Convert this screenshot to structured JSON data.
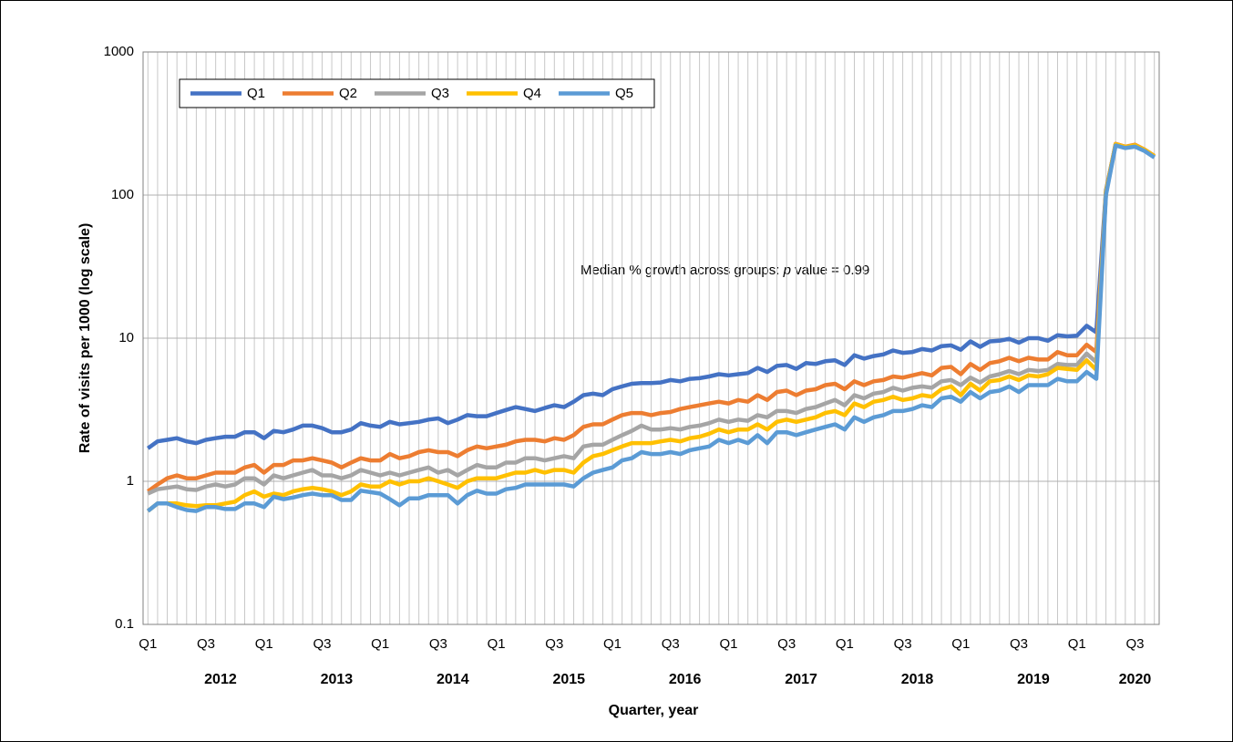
{
  "chart_data": {
    "type": "line",
    "y_label": "Rate of visits per 1000 (log scale)",
    "x_label": "Quarter, year",
    "annotation": [
      "Median % growth across groups: ",
      "p",
      " value = 0.99"
    ],
    "log_scale": true,
    "grid": true,
    "legend": "upper left",
    "ylim": [
      0.1,
      1000
    ],
    "yticks": [
      0.1,
      1,
      10,
      100,
      1000
    ],
    "x_groups": [
      "2012",
      "2013",
      "2014",
      "2015",
      "2016",
      "2017",
      "2018",
      "2019",
      "2020"
    ],
    "categories": [
      "Q1",
      null,
      null,
      null,
      null,
      null,
      "Q3",
      null,
      null,
      null,
      null,
      null,
      "Q1",
      null,
      null,
      null,
      null,
      null,
      "Q3",
      null,
      null,
      null,
      null,
      null,
      "Q1",
      null,
      null,
      null,
      null,
      null,
      "Q3",
      null,
      null,
      null,
      null,
      null,
      "Q1",
      null,
      null,
      null,
      null,
      null,
      "Q3",
      null,
      null,
      null,
      null,
      null,
      "Q1",
      null,
      null,
      null,
      null,
      null,
      "Q3",
      null,
      null,
      null,
      null,
      null,
      "Q1",
      null,
      null,
      null,
      null,
      null,
      "Q3",
      null,
      null,
      null,
      null,
      null,
      "Q1",
      null,
      null,
      null,
      null,
      null,
      "Q3",
      null,
      null,
      null,
      null,
      null,
      "Q1",
      null,
      null,
      null,
      null,
      null,
      "Q3",
      null,
      null,
      null,
      null,
      null,
      "Q1",
      null,
      null,
      null,
      null,
      null,
      "Q3",
      null,
      null
    ],
    "series": [
      {
        "name": "Q1",
        "color": "#4472c4",
        "values": [
          1.7,
          1.9,
          1.95,
          2.0,
          1.9,
          1.85,
          1.95,
          2.0,
          2.05,
          2.05,
          2.2,
          2.2,
          2.0,
          2.25,
          2.2,
          2.3,
          2.45,
          2.45,
          2.35,
          2.2,
          2.2,
          2.3,
          2.55,
          2.45,
          2.4,
          2.6,
          2.5,
          2.55,
          2.6,
          2.7,
          2.75,
          2.55,
          2.7,
          2.9,
          2.85,
          2.85,
          3.0,
          3.15,
          3.3,
          3.2,
          3.1,
          3.25,
          3.4,
          3.3,
          3.6,
          4.0,
          4.1,
          4.0,
          4.4,
          4.6,
          4.8,
          4.85,
          4.85,
          4.9,
          5.1,
          5.0,
          5.2,
          5.25,
          5.4,
          5.6,
          5.5,
          5.6,
          5.7,
          6.2,
          5.8,
          6.4,
          6.5,
          6.1,
          6.7,
          6.6,
          6.9,
          7.0,
          6.5,
          7.6,
          7.2,
          7.5,
          7.7,
          8.2,
          7.9,
          8.0,
          8.4,
          8.2,
          8.8,
          8.9,
          8.3,
          9.5,
          8.7,
          9.5,
          9.6,
          9.9,
          9.3,
          10.0,
          10.0,
          9.6,
          10.5,
          10.3,
          10.4,
          12.2,
          11.0,
          108,
          225,
          215,
          220,
          205,
          185
        ]
      },
      {
        "name": "Q2",
        "color": "#ed7d31",
        "values": [
          0.85,
          0.95,
          1.05,
          1.1,
          1.05,
          1.05,
          1.1,
          1.15,
          1.15,
          1.15,
          1.25,
          1.3,
          1.15,
          1.3,
          1.3,
          1.4,
          1.4,
          1.45,
          1.4,
          1.35,
          1.25,
          1.35,
          1.45,
          1.4,
          1.4,
          1.55,
          1.45,
          1.5,
          1.6,
          1.65,
          1.6,
          1.6,
          1.5,
          1.65,
          1.75,
          1.7,
          1.75,
          1.8,
          1.9,
          1.95,
          1.95,
          1.9,
          2.0,
          1.95,
          2.1,
          2.4,
          2.5,
          2.5,
          2.7,
          2.9,
          3.0,
          3.0,
          2.9,
          3.0,
          3.05,
          3.2,
          3.3,
          3.4,
          3.5,
          3.6,
          3.5,
          3.7,
          3.6,
          4.0,
          3.7,
          4.2,
          4.3,
          4.0,
          4.3,
          4.4,
          4.7,
          4.8,
          4.4,
          5.0,
          4.7,
          5.0,
          5.1,
          5.4,
          5.3,
          5.5,
          5.7,
          5.5,
          6.2,
          6.3,
          5.6,
          6.6,
          6.0,
          6.7,
          6.9,
          7.3,
          6.9,
          7.3,
          7.1,
          7.1,
          8.0,
          7.6,
          7.6,
          9.0,
          8.0,
          105,
          228,
          218,
          225,
          208,
          188
        ]
      },
      {
        "name": "Q3",
        "color": "#a5a5a5",
        "values": [
          0.82,
          0.88,
          0.9,
          0.92,
          0.88,
          0.87,
          0.92,
          0.95,
          0.92,
          0.95,
          1.05,
          1.05,
          0.95,
          1.1,
          1.05,
          1.1,
          1.15,
          1.2,
          1.1,
          1.1,
          1.05,
          1.1,
          1.2,
          1.15,
          1.1,
          1.15,
          1.1,
          1.15,
          1.2,
          1.25,
          1.15,
          1.2,
          1.1,
          1.2,
          1.3,
          1.25,
          1.25,
          1.35,
          1.35,
          1.45,
          1.45,
          1.4,
          1.45,
          1.5,
          1.45,
          1.75,
          1.8,
          1.8,
          1.95,
          2.1,
          2.25,
          2.45,
          2.3,
          2.3,
          2.35,
          2.3,
          2.4,
          2.45,
          2.55,
          2.7,
          2.6,
          2.7,
          2.65,
          2.9,
          2.8,
          3.1,
          3.1,
          3.0,
          3.2,
          3.3,
          3.5,
          3.7,
          3.4,
          4.0,
          3.8,
          4.1,
          4.2,
          4.5,
          4.3,
          4.5,
          4.6,
          4.5,
          5.0,
          5.1,
          4.7,
          5.3,
          4.9,
          5.4,
          5.6,
          5.9,
          5.6,
          6.0,
          5.9,
          6.0,
          6.6,
          6.5,
          6.5,
          7.8,
          6.8,
          103,
          226,
          216,
          222,
          206,
          186
        ]
      },
      {
        "name": "Q4",
        "color": "#ffc000",
        "values": [
          0.62,
          0.7,
          0.7,
          0.7,
          0.68,
          0.67,
          0.68,
          0.68,
          0.7,
          0.72,
          0.8,
          0.85,
          0.78,
          0.82,
          0.8,
          0.85,
          0.88,
          0.9,
          0.88,
          0.85,
          0.8,
          0.85,
          0.95,
          0.92,
          0.92,
          1.0,
          0.95,
          1.0,
          1.0,
          1.05,
          1.0,
          0.95,
          0.9,
          1.0,
          1.05,
          1.05,
          1.05,
          1.1,
          1.15,
          1.15,
          1.2,
          1.15,
          1.2,
          1.2,
          1.15,
          1.35,
          1.5,
          1.55,
          1.65,
          1.75,
          1.85,
          1.85,
          1.85,
          1.9,
          1.95,
          1.9,
          2.0,
          2.05,
          2.15,
          2.3,
          2.2,
          2.3,
          2.3,
          2.5,
          2.3,
          2.6,
          2.7,
          2.6,
          2.7,
          2.8,
          3.0,
          3.1,
          2.9,
          3.5,
          3.3,
          3.6,
          3.7,
          3.9,
          3.7,
          3.8,
          4.0,
          3.9,
          4.4,
          4.6,
          4.0,
          4.8,
          4.3,
          5.0,
          5.1,
          5.4,
          5.1,
          5.5,
          5.4,
          5.6,
          6.2,
          6.1,
          6.0,
          7.0,
          6.0,
          104,
          227,
          217,
          223,
          207,
          187
        ]
      },
      {
        "name": "Q5",
        "color": "#5b9bd5",
        "values": [
          0.62,
          0.7,
          0.7,
          0.66,
          0.63,
          0.62,
          0.66,
          0.66,
          0.64,
          0.64,
          0.7,
          0.7,
          0.66,
          0.78,
          0.75,
          0.77,
          0.8,
          0.82,
          0.8,
          0.8,
          0.74,
          0.74,
          0.86,
          0.84,
          0.82,
          0.75,
          0.68,
          0.76,
          0.76,
          0.8,
          0.8,
          0.8,
          0.7,
          0.8,
          0.86,
          0.82,
          0.82,
          0.88,
          0.9,
          0.95,
          0.95,
          0.95,
          0.95,
          0.95,
          0.92,
          1.05,
          1.15,
          1.2,
          1.25,
          1.4,
          1.45,
          1.6,
          1.55,
          1.55,
          1.6,
          1.55,
          1.65,
          1.7,
          1.75,
          1.95,
          1.85,
          1.95,
          1.85,
          2.1,
          1.85,
          2.2,
          2.2,
          2.1,
          2.2,
          2.3,
          2.4,
          2.5,
          2.3,
          2.8,
          2.6,
          2.8,
          2.9,
          3.1,
          3.1,
          3.2,
          3.4,
          3.3,
          3.8,
          3.9,
          3.6,
          4.2,
          3.8,
          4.2,
          4.3,
          4.6,
          4.2,
          4.7,
          4.7,
          4.7,
          5.2,
          5.0,
          5.0,
          5.8,
          5.2,
          100,
          222,
          213,
          218,
          203,
          183
        ]
      }
    ]
  }
}
